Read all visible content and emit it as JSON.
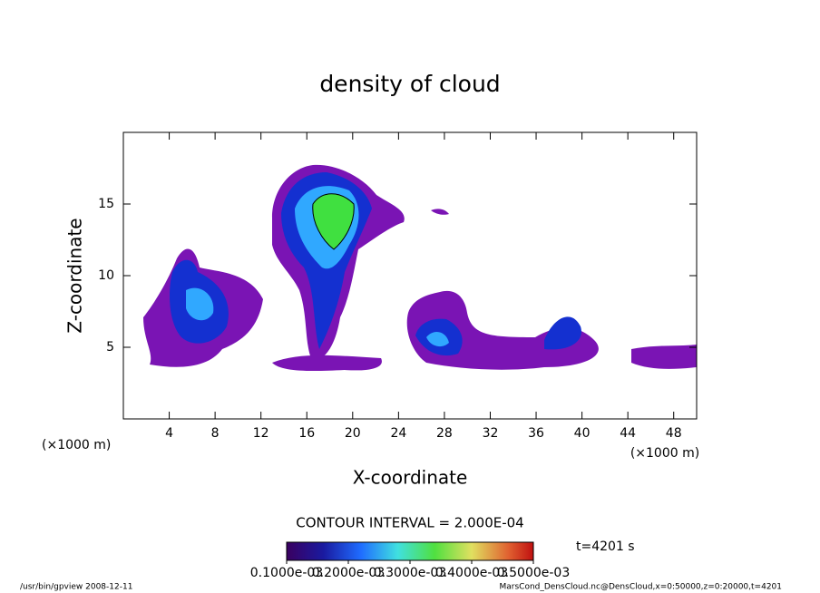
{
  "chart_data": {
    "type": "contour",
    "title": "density of cloud",
    "x_label": "X-coordinate",
    "y_label": "Z-coordinate",
    "x_unit": "(×1000 m)",
    "xlim": [
      0,
      50
    ],
    "xticks": [
      4,
      8,
      12,
      16,
      20,
      24,
      28,
      32,
      36,
      40,
      44,
      48
    ],
    "ylim": [
      0,
      20
    ],
    "yticks": [
      5,
      10,
      15
    ],
    "contour_interval": "CONTOUR INTERVAL = 2.000E-04",
    "clim": [
      0.0001,
      0.0005
    ],
    "colorbar_ticks": [
      {
        "value": 0.0001,
        "label": "0.1000e-03"
      },
      {
        "value": 0.0002,
        "label": "0.2000e-03"
      },
      {
        "value": 0.0003,
        "label": "0.3000e-03"
      },
      {
        "value": 0.0004,
        "label": "0.4000e-03"
      },
      {
        "value": 0.0005,
        "label": "0.5000e-03"
      }
    ],
    "time": "t=4201 s",
    "footer_left": "/usr/bin/gpview   2008-12-11",
    "footer_right": "MarsCond_DensCloud.nc@DensCloud,x=0:50000,z=0:20000,t=4201"
  }
}
